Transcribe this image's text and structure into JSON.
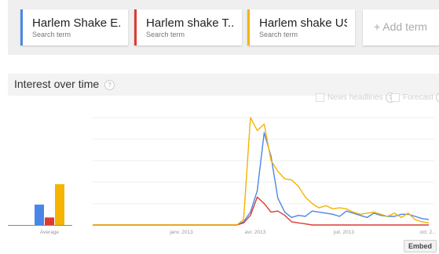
{
  "terms": [
    {
      "name": "Harlem Shake E...",
      "type": "Search term",
      "color": "#4a86e8"
    },
    {
      "name": "Harlem shake T...",
      "type": "Search term",
      "color": "#dc3b30"
    },
    {
      "name": "Harlem shake US",
      "type": "Search term",
      "color": "#f4b400"
    }
  ],
  "add_term_label": "+ Add term",
  "interest": {
    "title": "Interest over time",
    "help_glyph": "?",
    "news_headlines_label": "News headlines",
    "forecast_label": "Forecast"
  },
  "embed_label": "Embed",
  "chart_data": [
    {
      "type": "bar",
      "categories": [
        "Average"
      ],
      "series": [
        {
          "name": "Harlem Shake E...",
          "color": "#4a86e8",
          "values": [
            19
          ]
        },
        {
          "name": "Harlem shake T...",
          "color": "#dc3b30",
          "values": [
            7
          ]
        },
        {
          "name": "Harlem shake US",
          "color": "#f4b400",
          "values": [
            38
          ]
        }
      ],
      "ylim": [
        0,
        100
      ],
      "xlabel": "",
      "ylabel": ""
    },
    {
      "type": "line",
      "x": [
        "2012-10-28",
        "2012-11-04",
        "2012-11-11",
        "2012-11-18",
        "2012-11-25",
        "2012-12-02",
        "2012-12-09",
        "2012-12-16",
        "2012-12-23",
        "2012-12-30",
        "2013-01-06",
        "2013-01-13",
        "2013-01-20",
        "2013-01-27",
        "2013-02-03",
        "2013-02-10",
        "2013-02-17",
        "2013-02-24",
        "2013-03-03",
        "2013-03-10",
        "2013-03-17",
        "2013-03-24",
        "2013-03-31",
        "2013-04-07",
        "2013-04-14",
        "2013-04-21",
        "2013-04-28",
        "2013-05-05",
        "2013-05-12",
        "2013-05-19",
        "2013-05-26",
        "2013-06-02",
        "2013-06-09",
        "2013-06-16",
        "2013-06-23",
        "2013-06-30",
        "2013-07-07",
        "2013-07-14",
        "2013-07-21",
        "2013-07-28",
        "2013-08-04",
        "2013-08-11",
        "2013-08-18",
        "2013-08-25",
        "2013-09-01",
        "2013-09-08",
        "2013-09-15",
        "2013-09-22",
        "2013-09-29",
        "2013-10-06"
      ],
      "tick_labels": [
        "Average",
        "janv. 2013",
        "avr. 2013",
        "juil. 2013",
        "oct. 2..."
      ],
      "series": [
        {
          "name": "Harlem Shake E...",
          "color": "#4a86e8",
          "values": [
            0,
            0,
            0,
            0,
            0,
            0,
            0,
            0,
            0,
            0,
            0,
            0,
            0,
            0,
            0,
            0,
            0,
            0,
            0,
            0,
            0,
            0,
            3,
            12,
            32,
            86,
            64,
            25,
            12,
            7,
            9,
            8,
            13,
            12,
            11,
            10,
            8,
            13,
            11,
            9,
            7,
            11,
            9,
            8,
            8,
            10,
            10,
            8,
            6,
            5
          ]
        },
        {
          "name": "Harlem shake T...",
          "color": "#dc3b30",
          "values": [
            0,
            0,
            0,
            0,
            0,
            0,
            0,
            0,
            0,
            0,
            0,
            0,
            0,
            0,
            0,
            0,
            0,
            0,
            0,
            0,
            0,
            0,
            2,
            9,
            26,
            20,
            12,
            13,
            9,
            3,
            2,
            1,
            0,
            0,
            0,
            0,
            0,
            0,
            0,
            0,
            0,
            0,
            0,
            0,
            0,
            0,
            0,
            0,
            0,
            0
          ]
        },
        {
          "name": "Harlem shake US",
          "color": "#f4b400",
          "values": [
            0,
            0,
            0,
            0,
            0,
            0,
            0,
            0,
            0,
            0,
            0,
            0,
            0,
            0,
            0,
            0,
            0,
            0,
            0,
            0,
            0,
            0,
            5,
            100,
            88,
            94,
            60,
            50,
            43,
            42,
            36,
            26,
            20,
            16,
            18,
            15,
            16,
            15,
            12,
            10,
            11,
            12,
            10,
            8,
            11,
            7,
            11,
            5,
            3,
            2
          ]
        }
      ],
      "ylim": [
        0,
        100
      ],
      "grid": true,
      "legend": "none",
      "xlabel": "",
      "ylabel": ""
    }
  ]
}
